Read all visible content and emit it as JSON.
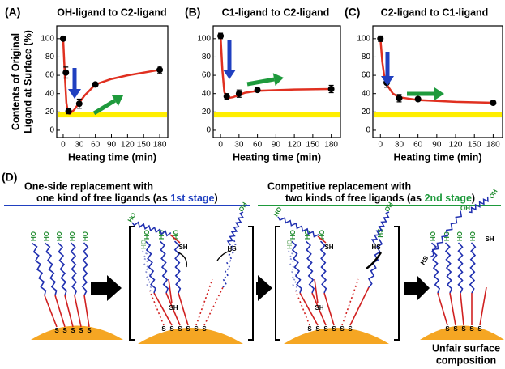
{
  "chart_data": [
    {
      "type": "scatter",
      "panel": "(A)",
      "title": "OH-ligand to C2-ligand",
      "ylabel": [
        "Contents of Original",
        "Ligand at Surface (%)"
      ],
      "xlabel": "Heating time (min)",
      "xlim": [
        -12,
        195
      ],
      "ylim": [
        -8,
        114
      ],
      "xticks": [
        0,
        30,
        60,
        90,
        120,
        150,
        180
      ],
      "yticks": [
        0,
        20,
        40,
        60,
        80,
        100
      ],
      "x": [
        0,
        5,
        10,
        30,
        60,
        180
      ],
      "values": [
        100,
        63,
        21,
        29,
        50,
        66
      ],
      "errors": [
        0,
        6,
        3,
        5,
        0,
        4
      ],
      "fit_x": [
        0,
        3,
        6,
        9,
        12,
        20,
        40,
        60,
        90,
        120,
        180
      ],
      "fit_values": [
        100,
        62,
        30,
        19,
        18,
        22,
        38,
        50,
        56,
        60,
        66
      ],
      "band": [
        14,
        20
      ],
      "color": "#000000",
      "fit_color": "#e03020",
      "band_color": "#ffee00"
    },
    {
      "type": "scatter",
      "panel": "(B)",
      "title": "C1-ligand to C2-ligand",
      "xlabel": "Heating time (min)",
      "xlim": [
        -12,
        195
      ],
      "ylim": [
        -8,
        114
      ],
      "xticks": [
        0,
        30,
        60,
        90,
        120,
        150,
        180
      ],
      "yticks": [
        0,
        20,
        40,
        60,
        80,
        100
      ],
      "x": [
        0,
        10,
        30,
        60,
        180
      ],
      "values": [
        103,
        37,
        40,
        44,
        45
      ],
      "errors": [
        3,
        3,
        4,
        2,
        4
      ],
      "fit_x": [
        0,
        3,
        6,
        10,
        20,
        40,
        60,
        120,
        180
      ],
      "fit_values": [
        103,
        65,
        42,
        35,
        36,
        41,
        43,
        44.5,
        45
      ],
      "band": [
        14,
        20
      ],
      "color": "#000000",
      "fit_color": "#e03020",
      "band_color": "#ffee00"
    },
    {
      "type": "scatter",
      "panel": "(C)",
      "title": "C2-ligand to C1-ligand",
      "xlabel": "Heating time (min)",
      "xlim": [
        -12,
        195
      ],
      "ylim": [
        -8,
        114
      ],
      "xticks": [
        0,
        30,
        60,
        90,
        120,
        150,
        180
      ],
      "yticks": [
        0,
        20,
        40,
        60,
        80,
        100
      ],
      "x": [
        0,
        10,
        30,
        60,
        180
      ],
      "values": [
        100,
        52,
        35,
        34,
        30
      ],
      "errors": [
        3,
        5,
        4,
        1,
        2
      ],
      "fit_x": [
        0,
        3,
        6,
        10,
        20,
        30,
        60,
        120,
        180
      ],
      "fit_values": [
        100,
        75,
        60,
        50,
        40,
        36,
        33,
        31,
        30
      ],
      "band": [
        14,
        20
      ],
      "color": "#000000",
      "fit_color": "#e03020",
      "band_color": "#ffee00"
    }
  ],
  "diagram": {
    "panel": "(D)",
    "stage1": {
      "line1": "One-side replacement with",
      "line2": "one kind of free ligands (as ",
      "stage": "1st stage",
      "close": ")"
    },
    "stage2": {
      "line1": "Competitive replacement with",
      "line2": "two kinds of free ligands (as ",
      "stage": "2nd stage",
      "close": ")"
    },
    "result": [
      "Unfair surface",
      "composition"
    ],
    "labels": {
      "ho": "HO",
      "oh": "OH",
      "sh": "SH",
      "hs": "HS",
      "s": "S"
    }
  }
}
